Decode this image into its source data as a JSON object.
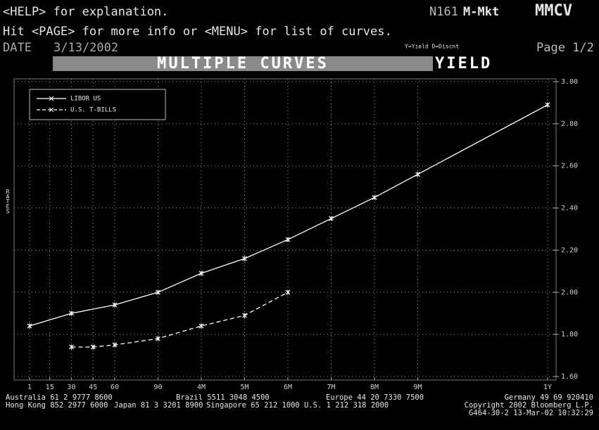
{
  "header": {
    "help_line": "<HELP> for explanation.",
    "code": "N161",
    "market": "M-Mkt",
    "function": "MMCV",
    "hint": "Hit <PAGE> for more info or <MENU> for list of curves.",
    "date_label": "DATE",
    "date": "3/13/2002",
    "mode_key": "Y=Yield D=Discnt",
    "page": "Page 1/2",
    "banner": "MULTIPLE CURVES",
    "mode": "YIELD"
  },
  "chart_data": {
    "type": "line",
    "y_label": "RATES",
    "xlim": [
      1,
      360
    ],
    "xticks": [
      1,
      15,
      30,
      45,
      60,
      90,
      {
        "value": 120,
        "label": "4M"
      },
      {
        "value": 150,
        "label": "5M"
      },
      {
        "value": 180,
        "label": "6M"
      },
      {
        "value": 210,
        "label": "7M"
      },
      {
        "value": 240,
        "label": "8M"
      },
      {
        "value": 270,
        "label": "9M"
      },
      {
        "value": 360,
        "label": "1Y"
      }
    ],
    "ylim": [
      1.6,
      3.0
    ],
    "yticks": [
      {
        "value": 1.6,
        "label": "1.60"
      },
      {
        "value": 1.8,
        "label": "1.80"
      },
      {
        "value": 2.0,
        "label": "2.00"
      },
      {
        "value": 2.2,
        "label": "2.20"
      },
      {
        "value": 2.4,
        "label": "2.40"
      },
      {
        "value": 2.6,
        "label": "2.60"
      },
      {
        "value": 2.8,
        "label": "2.80"
      },
      {
        "value": 3.0,
        "label": "3.00"
      }
    ],
    "grid": true,
    "legend": "top-left",
    "series": [
      {
        "name": "LIBOR US",
        "color": "#ffffff",
        "dash": "solid",
        "x": [
          1,
          30,
          60,
          90,
          120,
          150,
          180,
          210,
          240,
          270,
          360
        ],
        "values": [
          1.84,
          1.9,
          1.94,
          2.0,
          2.09,
          2.16,
          2.25,
          2.35,
          2.45,
          2.56,
          2.89
        ]
      },
      {
        "name": "U.S. T-BILLS",
        "color": "#ffffff",
        "dash": "dashed",
        "x": [
          30,
          45,
          60,
          90,
          120,
          150,
          180
        ],
        "values": [
          1.74,
          1.74,
          1.75,
          1.78,
          1.84,
          1.89,
          2.0
        ]
      }
    ]
  },
  "footer": {
    "contacts": [
      "Australia 61 2 9777 8600",
      "Brazil 5511 3048 4500",
      "Europe 44 20 7330 7500",
      "Germany 49 69 920410",
      "Hong Kong 852 2977 6000",
      "Japan 81 3 3201 8900",
      "Singapore 65 212 1000",
      "U.S. 1 212 318 2000"
    ],
    "copyright": "Copyright 2002 Bloomberg L.P.",
    "stamp": "G464-30-2 13-Mar-02 10:32:29"
  }
}
